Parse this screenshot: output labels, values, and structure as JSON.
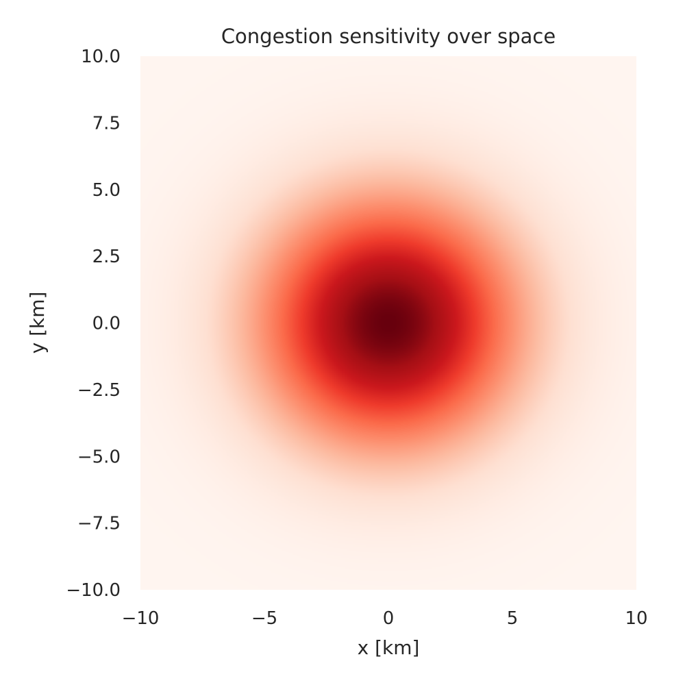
{
  "chart_data": {
    "type": "heatmap",
    "title": "Congestion sensitivity over space",
    "xlabel": "x [km]",
    "ylabel": "y [km]",
    "xlim": [
      -10,
      10
    ],
    "ylim": [
      -10,
      10
    ],
    "x_ticks": [
      {
        "value": -10,
        "label": "−10"
      },
      {
        "value": -5,
        "label": "−5"
      },
      {
        "value": 0,
        "label": "0"
      },
      {
        "value": 5,
        "label": "5"
      },
      {
        "value": 10,
        "label": "10"
      }
    ],
    "y_ticks": [
      {
        "value": 10,
        "label": "10.0"
      },
      {
        "value": 7.5,
        "label": "7.5"
      },
      {
        "value": 5,
        "label": "5.0"
      },
      {
        "value": 2.5,
        "label": "2.5"
      },
      {
        "value": 0,
        "label": "0.0"
      },
      {
        "value": -2.5,
        "label": "−2.5"
      },
      {
        "value": -5,
        "label": "−5.0"
      },
      {
        "value": -7.5,
        "label": "−7.5"
      },
      {
        "value": -10,
        "label": "−10.0"
      }
    ],
    "grid": false,
    "colormap": "Reds",
    "colormap_stops": [
      "#fff5f0",
      "#fee0d2",
      "#fcbba1",
      "#fc9272",
      "#fb6a4a",
      "#ef3b2c",
      "#cb181d",
      "#a50f15",
      "#67000d"
    ],
    "peak": {
      "x": 0,
      "y": 0
    },
    "fields": {
      "sigma_x": 3.6,
      "sigma_y": 3.2
    }
  }
}
